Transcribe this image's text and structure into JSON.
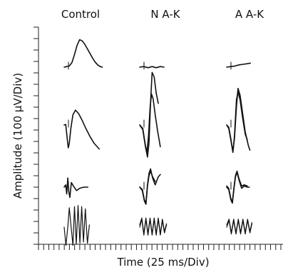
{
  "chart_data": {
    "type": "line",
    "xlabel": "Time (25 ms/Div)",
    "ylabel": "Amplitude (100 µV/Div)",
    "columns": [
      "Control",
      "N A-K",
      "A A-K"
    ],
    "y_divisions": 19,
    "x_divisions": 47,
    "panels": [
      {
        "column": "Control",
        "row": 1,
        "traces": [
          [
            [
              0,
              0
            ],
            [
              0.5,
              0.05
            ],
            [
              1,
              0.1
            ],
            [
              1.5,
              0.4
            ],
            [
              2,
              1.1
            ],
            [
              2.5,
              1.9
            ],
            [
              3,
              2.4
            ],
            [
              3.5,
              2.3
            ],
            [
              4,
              2.0
            ],
            [
              4.5,
              1.6
            ],
            [
              5,
              1.2
            ],
            [
              5.5,
              0.8
            ],
            [
              6,
              0.45
            ],
            [
              6.5,
              0.2
            ],
            [
              7,
              0.05
            ],
            [
              7.4,
              0
            ]
          ]
        ]
      },
      {
        "column": "Control",
        "row": 2,
        "traces": [
          [
            [
              0,
              0
            ],
            [
              0.3,
              0.05
            ],
            [
              0.6,
              -1.2
            ],
            [
              0.8,
              -2.0
            ],
            [
              1.0,
              -1.6
            ],
            [
              1.3,
              -0.3
            ],
            [
              1.7,
              0.9
            ],
            [
              2.2,
              1.3
            ],
            [
              2.8,
              1.0
            ],
            [
              3.5,
              0.4
            ],
            [
              4.2,
              -0.3
            ],
            [
              5.0,
              -1.0
            ],
            [
              5.8,
              -1.6
            ],
            [
              6.4,
              -1.9
            ],
            [
              6.8,
              -2.1
            ]
          ]
        ]
      },
      {
        "column": "Control",
        "row": 3,
        "traces": [
          [
            [
              0,
              0
            ],
            [
              0.3,
              0.2
            ],
            [
              0.5,
              -0.6
            ],
            [
              0.7,
              0.8
            ],
            [
              0.9,
              -0.4
            ],
            [
              1.1,
              -0.9
            ],
            [
              1.4,
              0.4
            ],
            [
              1.8,
              0.1
            ],
            [
              2.4,
              -0.3
            ],
            [
              3.0,
              -0.1
            ],
            [
              3.8,
              0
            ],
            [
              4.6,
              0
            ]
          ]
        ]
      },
      {
        "column": "Control",
        "row": 4,
        "traces": [
          [
            [
              0,
              0
            ],
            [
              0.35,
              -1.6
            ],
            [
              0.7,
              0
            ],
            [
              1.0,
              1.7
            ],
            [
              1.35,
              0
            ],
            [
              1.7,
              -1.6
            ],
            [
              2.0,
              1.8
            ],
            [
              2.35,
              -1.5
            ],
            [
              2.7,
              1.9
            ],
            [
              3.05,
              -1.4
            ],
            [
              3.4,
              1.8
            ],
            [
              3.75,
              -1.3
            ],
            [
              4.1,
              1.6
            ],
            [
              4.5,
              -1.4
            ],
            [
              4.9,
              0.2
            ]
          ]
        ]
      },
      {
        "column": "N A-K",
        "row": 1,
        "traces": [
          [
            [
              0,
              0
            ],
            [
              0.8,
              0.05
            ],
            [
              1.6,
              -0.05
            ],
            [
              2.4,
              0.05
            ],
            [
              3.2,
              -0.05
            ],
            [
              4.0,
              0.05
            ],
            [
              4.7,
              0
            ]
          ]
        ]
      },
      {
        "column": "N A-K",
        "row": 2,
        "traces": [
          [
            [
              0,
              0
            ],
            [
              0.6,
              -0.3
            ],
            [
              1.1,
              -1.8
            ],
            [
              1.4,
              -2.4
            ],
            [
              1.7,
              -1.0
            ],
            [
              2.0,
              1.5
            ],
            [
              2.3,
              2.7
            ],
            [
              2.6,
              2.3
            ],
            [
              3.0,
              0.9
            ],
            [
              3.5,
              -0.6
            ],
            [
              4.0,
              -1.9
            ]
          ],
          [
            [
              0,
              0
            ],
            [
              0.6,
              -0.4
            ],
            [
              1.1,
              -1.9
            ],
            [
              1.5,
              -2.8
            ],
            [
              1.8,
              -1.6
            ],
            [
              2.1,
              2.0
            ],
            [
              2.4,
              4.6
            ],
            [
              2.8,
              4.2
            ],
            [
              3.2,
              2.8
            ],
            [
              3.6,
              1.9
            ]
          ]
        ]
      },
      {
        "column": "N A-K",
        "row": 3,
        "traces": [
          [
            [
              0,
              0
            ],
            [
              0.5,
              -0.2
            ],
            [
              0.9,
              -1.1
            ],
            [
              1.2,
              -1.4
            ],
            [
              1.5,
              0.2
            ],
            [
              1.8,
              1.2
            ],
            [
              2.1,
              1.6
            ],
            [
              2.5,
              0.8
            ],
            [
              3.0,
              0.2
            ],
            [
              3.6,
              0.9
            ],
            [
              4.0,
              1.1
            ]
          ],
          [
            [
              0,
              0
            ],
            [
              0.5,
              -0.3
            ],
            [
              0.9,
              -1.2
            ],
            [
              1.2,
              -1.5
            ],
            [
              1.5,
              0.1
            ],
            [
              1.8,
              1.0
            ],
            [
              2.1,
              1.4
            ],
            [
              2.5,
              0.9
            ],
            [
              3.0,
              0.5
            ]
          ]
        ]
      },
      {
        "column": "N A-K",
        "row": 4,
        "traces": [
          [
            [
              0,
              0
            ],
            [
              0.4,
              0.7
            ],
            [
              0.8,
              -0.7
            ],
            [
              1.2,
              0.7
            ],
            [
              1.6,
              -0.7
            ],
            [
              2.0,
              0.7
            ],
            [
              2.4,
              -0.7
            ],
            [
              2.8,
              0.7
            ],
            [
              3.2,
              -0.7
            ],
            [
              3.6,
              0.7
            ],
            [
              4.0,
              -0.7
            ],
            [
              4.4,
              0.6
            ],
            [
              4.8,
              -0.5
            ],
            [
              5.2,
              0.2
            ]
          ],
          [
            [
              0,
              0.2
            ],
            [
              0.4,
              0.8
            ],
            [
              0.8,
              -0.6
            ],
            [
              1.2,
              0.8
            ],
            [
              1.6,
              -0.6
            ],
            [
              2.0,
              0.8
            ],
            [
              2.4,
              -0.6
            ],
            [
              2.8,
              0.8
            ],
            [
              3.2,
              -0.6
            ],
            [
              3.6,
              0.8
            ],
            [
              4.0,
              -0.6
            ],
            [
              4.4,
              0.7
            ],
            [
              4.8,
              -0.4
            ],
            [
              5.2,
              0.3
            ]
          ]
        ]
      },
      {
        "column": "A A-K",
        "row": 1,
        "traces": [
          [
            [
              0,
              0
            ],
            [
              0.8,
              0.05
            ],
            [
              1.6,
              0.1
            ],
            [
              2.4,
              0.2
            ],
            [
              3.2,
              0.25
            ],
            [
              4.0,
              0.3
            ],
            [
              4.6,
              0.35
            ]
          ]
        ]
      },
      {
        "column": "A A-K",
        "row": 2,
        "traces": [
          [
            [
              0,
              0
            ],
            [
              0.4,
              -0.2
            ],
            [
              0.8,
              -1.2
            ],
            [
              1.2,
              -2.4
            ],
            [
              1.5,
              -1.0
            ],
            [
              1.9,
              2.2
            ],
            [
              2.2,
              2.9
            ],
            [
              2.6,
              2.2
            ],
            [
              3.1,
              0.6
            ],
            [
              3.6,
              -0.8
            ],
            [
              4.0,
              -1.3
            ]
          ],
          [
            [
              0,
              0
            ],
            [
              0.4,
              -0.3
            ],
            [
              0.8,
              -1.3
            ],
            [
              1.2,
              -2.3
            ],
            [
              1.5,
              -1.2
            ],
            [
              1.9,
              1.6
            ],
            [
              2.2,
              3.2
            ],
            [
              2.6,
              2.6
            ],
            [
              3.1,
              1.0
            ],
            [
              3.6,
              -0.6
            ],
            [
              4.2,
              -1.8
            ],
            [
              4.5,
              -2.2
            ]
          ]
        ]
      },
      {
        "column": "A A-K",
        "row": 3,
        "traces": [
          [
            [
              0,
              0
            ],
            [
              0.4,
              -0.2
            ],
            [
              0.8,
              -1.1
            ],
            [
              1.1,
              -1.4
            ],
            [
              1.4,
              -0.2
            ],
            [
              1.7,
              0.9
            ],
            [
              2.0,
              1.3
            ],
            [
              2.4,
              0.6
            ],
            [
              2.9,
              -0.1
            ],
            [
              3.4,
              0.1
            ],
            [
              4.0,
              0
            ],
            [
              4.4,
              0
            ]
          ],
          [
            [
              0,
              0.1
            ],
            [
              0.4,
              -0.1
            ],
            [
              0.8,
              -1.0
            ],
            [
              1.1,
              -1.3
            ],
            [
              1.4,
              -0.1
            ],
            [
              1.7,
              1.0
            ],
            [
              2.0,
              1.4
            ],
            [
              2.4,
              0.7
            ],
            [
              2.9,
              0.1
            ],
            [
              3.4,
              0.2
            ],
            [
              4.0,
              0.1
            ]
          ]
        ]
      },
      {
        "column": "A A-K",
        "row": 4,
        "traces": [
          [
            [
              0,
              0
            ],
            [
              0.45,
              0.6
            ],
            [
              0.9,
              -0.6
            ],
            [
              1.35,
              0.6
            ],
            [
              1.8,
              -0.6
            ],
            [
              2.25,
              0.6
            ],
            [
              2.7,
              -0.6
            ],
            [
              3.15,
              0.6
            ],
            [
              3.6,
              -0.6
            ],
            [
              4.05,
              0.6
            ],
            [
              4.5,
              -0.5
            ],
            [
              4.9,
              0.3
            ]
          ],
          [
            [
              0,
              0.2
            ],
            [
              0.45,
              0.7
            ],
            [
              0.9,
              -0.5
            ],
            [
              1.35,
              0.7
            ],
            [
              1.8,
              -0.5
            ],
            [
              2.25,
              0.7
            ],
            [
              2.7,
              -0.5
            ],
            [
              3.15,
              0.7
            ],
            [
              3.6,
              -0.5
            ],
            [
              4.05,
              0.7
            ],
            [
              4.5,
              -0.4
            ],
            [
              4.9,
              0.4
            ]
          ]
        ]
      }
    ]
  }
}
